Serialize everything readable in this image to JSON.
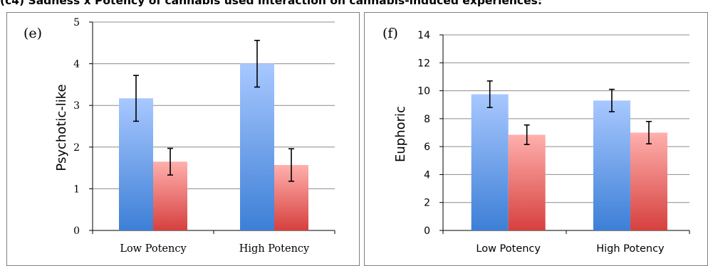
{
  "page_heading": "(c4) Sadness x Potency of cannabis used interaction on cannabis-induced experiences:",
  "colors": {
    "bar_blue_top": "#a8c8ff",
    "bar_blue_bottom": "#3d7fd6",
    "bar_red_top": "#ffb0ad",
    "bar_red_bottom": "#d6403e",
    "grid": "#8c8c8c",
    "axis": "#000000"
  },
  "chart_data": [
    {
      "type": "bar",
      "panel_label": "(e)",
      "ylabel": "Psychotic-like",
      "categories": [
        "Low Potency",
        "High Potency"
      ],
      "ylim": [
        0,
        5
      ],
      "yticks": [
        "0",
        "1",
        "2",
        "3",
        "4",
        "5"
      ],
      "grid": true,
      "legend": "none",
      "series": [
        {
          "values": [
            3.17,
            4.0
          ],
          "errors": [
            0.55,
            0.56
          ],
          "color": "blue"
        },
        {
          "values": [
            1.65,
            1.57
          ],
          "errors": [
            0.32,
            0.39
          ],
          "color": "red"
        }
      ]
    },
    {
      "type": "bar",
      "panel_label": "(f)",
      "ylabel": "Euphoric",
      "categories": [
        "Low Potency",
        "High Potency"
      ],
      "ylim": [
        0,
        14
      ],
      "yticks": [
        "0",
        "2",
        "4",
        "6",
        "8",
        "10",
        "12",
        "14"
      ],
      "grid": true,
      "legend": "none",
      "series": [
        {
          "values": [
            9.75,
            9.3
          ],
          "errors": [
            0.95,
            0.8
          ],
          "color": "blue"
        },
        {
          "values": [
            6.85,
            7.0
          ],
          "errors": [
            0.7,
            0.8
          ],
          "color": "red"
        }
      ]
    }
  ]
}
